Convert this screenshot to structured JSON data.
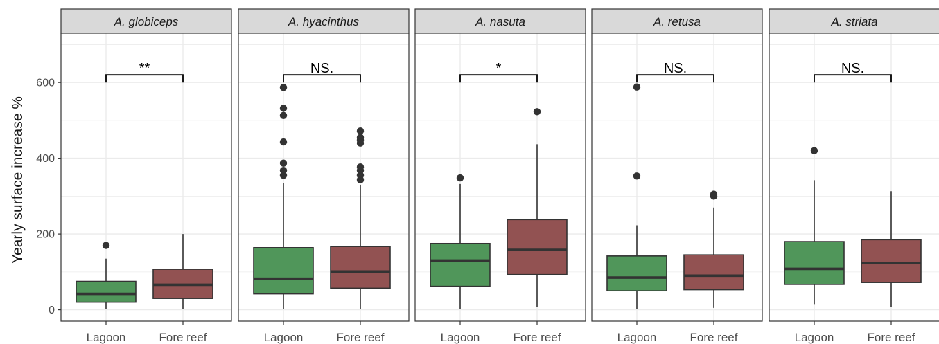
{
  "chart_data": {
    "type": "boxplot",
    "ylabel": "Yearly surface increase %",
    "yticks": [
      0,
      200,
      400,
      600
    ],
    "ylim": [
      -30,
      730
    ],
    "categories": [
      "Lagoon",
      "Fore reef"
    ],
    "colors": {
      "Lagoon": "#50965a",
      "Fore reef": "#925252",
      "strip": "#d9d9d9",
      "grid": "#ebebeb"
    },
    "facets": [
      {
        "title": "A. globiceps",
        "significance": "**",
        "bracket_y": 620,
        "boxes": [
          {
            "category": "Lagoon",
            "min": 2,
            "q1": 20,
            "median": 42,
            "q3": 75,
            "max": 135,
            "outliers": [
              170
            ]
          },
          {
            "category": "Fore reef",
            "min": 2,
            "q1": 30,
            "median": 66,
            "q3": 107,
            "max": 200,
            "outliers": []
          }
        ]
      },
      {
        "title": "A. hyacinthus",
        "significance": "NS.",
        "bracket_y": 620,
        "boxes": [
          {
            "category": "Lagoon",
            "min": 2,
            "q1": 42,
            "median": 82,
            "q3": 164,
            "max": 335,
            "outliers": [
              355,
              368,
              387,
              443,
              513,
              532,
              587
            ]
          },
          {
            "category": "Fore reef",
            "min": 2,
            "q1": 57,
            "median": 101,
            "q3": 167,
            "max": 330,
            "outliers": [
              343,
              355,
              368,
              377,
              440,
              448,
              455,
              472
            ]
          }
        ]
      },
      {
        "title": "A. nasuta",
        "significance": "*",
        "bracket_y": 620,
        "boxes": [
          {
            "category": "Lagoon",
            "min": 2,
            "q1": 62,
            "median": 130,
            "q3": 175,
            "max": 332,
            "outliers": [
              348
            ]
          },
          {
            "category": "Fore reef",
            "min": 8,
            "q1": 93,
            "median": 158,
            "q3": 238,
            "max": 437,
            "outliers": [
              523
            ]
          }
        ]
      },
      {
        "title": "A. retusa",
        "significance": "NS.",
        "bracket_y": 620,
        "boxes": [
          {
            "category": "Lagoon",
            "min": 2,
            "q1": 50,
            "median": 85,
            "q3": 142,
            "max": 223,
            "outliers": [
              353,
              588
            ]
          },
          {
            "category": "Fore reef",
            "min": 5,
            "q1": 53,
            "median": 90,
            "q3": 145,
            "max": 270,
            "outliers": [
              300,
              305
            ]
          }
        ]
      },
      {
        "title": "A. striata",
        "significance": "NS.",
        "bracket_y": 620,
        "boxes": [
          {
            "category": "Lagoon",
            "min": 15,
            "q1": 67,
            "median": 108,
            "q3": 180,
            "max": 342,
            "outliers": [
              420
            ]
          },
          {
            "category": "Fore reef",
            "min": 8,
            "q1": 72,
            "median": 123,
            "q3": 185,
            "max": 313,
            "outliers": []
          }
        ]
      }
    ]
  }
}
